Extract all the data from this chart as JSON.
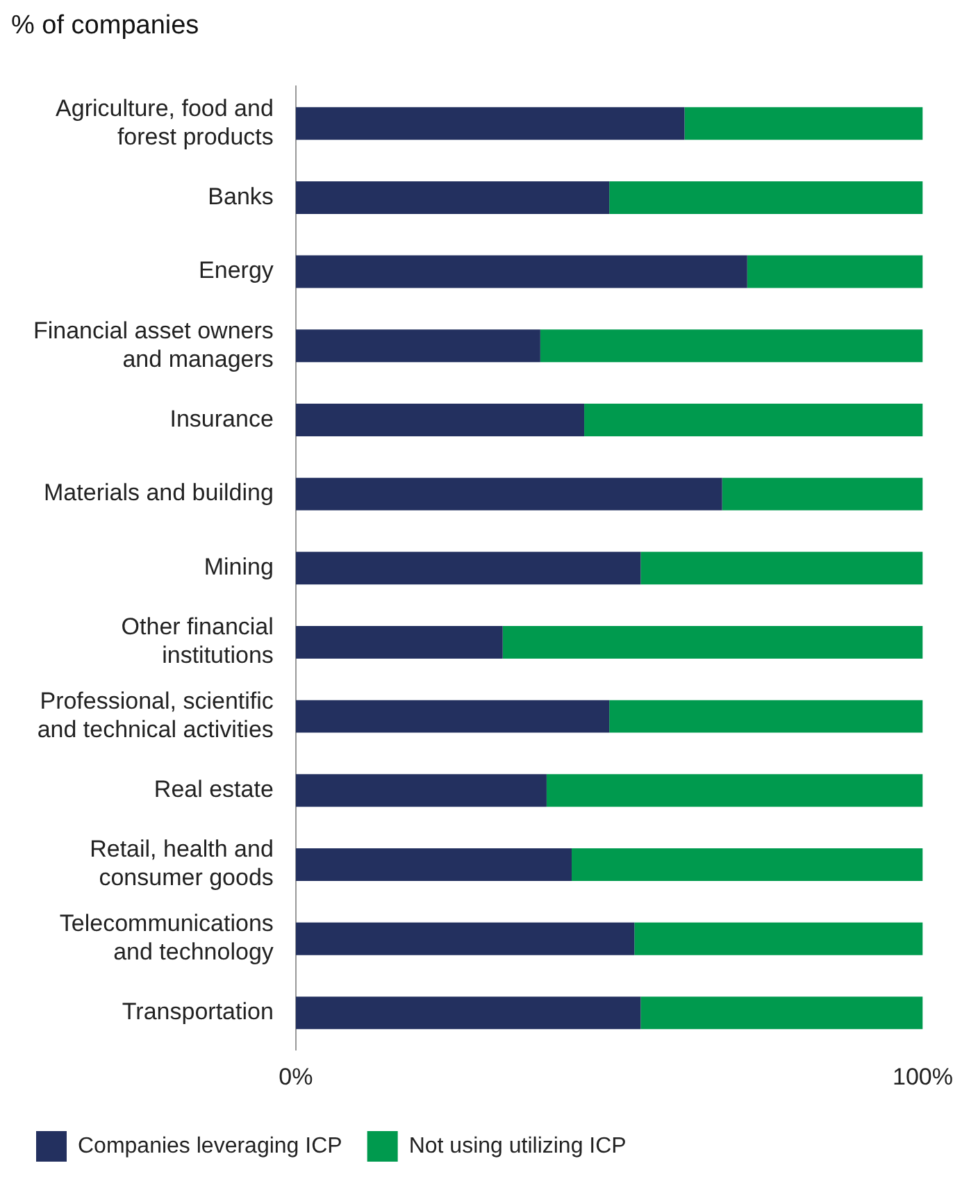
{
  "chart_data": {
    "type": "bar",
    "orientation": "horizontal",
    "stacked": true,
    "title": "% of companies",
    "categories": [
      "Agriculture, food and\nforest products",
      "Banks",
      "Energy",
      "Financial asset owners\nand managers",
      "Insurance",
      "Materials and building",
      "Mining",
      "Other financial\ninstitutions",
      "Professional, scientific\nand technical activities",
      "Real estate",
      "Retail, health and\nconsumer goods",
      "Telecommunications\nand technology",
      "Transportation"
    ],
    "series": [
      {
        "name": "Companies leveraging ICP",
        "color": "#23305f",
        "values": [
          62,
          50,
          72,
          39,
          46,
          68,
          55,
          33,
          50,
          40,
          44,
          54,
          55
        ]
      },
      {
        "name": "Not using utilizing ICP",
        "color": "#009a4e",
        "values": [
          38,
          50,
          28,
          61,
          54,
          32,
          45,
          67,
          50,
          60,
          56,
          46,
          45
        ]
      }
    ],
    "xlim": [
      0,
      100
    ],
    "xticks": [
      {
        "value": 0,
        "label": "0%"
      },
      {
        "value": 100,
        "label": "100%"
      }
    ],
    "grid": false,
    "legend": "bottom"
  }
}
